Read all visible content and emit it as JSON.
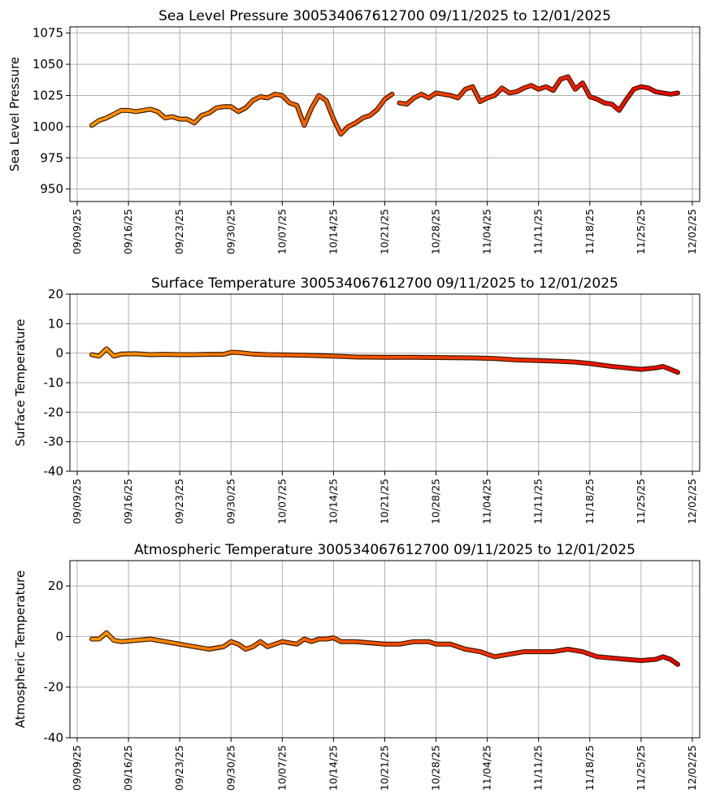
{
  "chart_data": [
    {
      "type": "line",
      "title": "Sea Level Pressure 300534067612700  09/11/2025 to 12/01/2025",
      "ylabel": "Sea Level Pressure",
      "ylim": [
        940,
        1080
      ],
      "yticks": [
        950,
        975,
        1000,
        1025,
        1050,
        1075
      ],
      "xlim": [
        "2025-09-08",
        "2025-12-03"
      ],
      "xtick_labels": [
        "09/09/25",
        "09/16/25",
        "09/23/25",
        "09/30/25",
        "10/07/25",
        "10/14/25",
        "10/21/25",
        "10/28/25",
        "11/04/25",
        "11/11/25",
        "11/18/25",
        "11/25/25",
        "12/02/25"
      ],
      "xtick_dates": [
        "2025-09-09",
        "2025-09-16",
        "2025-09-23",
        "2025-09-30",
        "2025-10-07",
        "2025-10-14",
        "2025-10-21",
        "2025-10-28",
        "2025-11-04",
        "2025-11-11",
        "2025-11-18",
        "2025-11-25",
        "2025-12-02"
      ],
      "grid": true,
      "color_gradient": [
        "#ff9900",
        "#ee0000"
      ],
      "series": [
        {
          "x": [
            "2025-09-11",
            "2025-09-12",
            "2025-09-13",
            "2025-09-14",
            "2025-09-15",
            "2025-09-16",
            "2025-09-17",
            "2025-09-18",
            "2025-09-19",
            "2025-09-20",
            "2025-09-21",
            "2025-09-22",
            "2025-09-23",
            "2025-09-24",
            "2025-09-25",
            "2025-09-26",
            "2025-09-27",
            "2025-09-28",
            "2025-09-29",
            "2025-09-30",
            "2025-10-01",
            "2025-10-02",
            "2025-10-03",
            "2025-10-04",
            "2025-10-05",
            "2025-10-06",
            "2025-10-07",
            "2025-10-08",
            "2025-10-09",
            "2025-10-10",
            "2025-10-11",
            "2025-10-12",
            "2025-10-13",
            "2025-10-14",
            "2025-10-15",
            "2025-10-16",
            "2025-10-17",
            "2025-10-18",
            "2025-10-19",
            "2025-10-20",
            "2025-10-21",
            "2025-10-22"
          ],
          "y": [
            1001,
            1005,
            1007,
            1010,
            1013,
            1013,
            1012,
            1013,
            1014,
            1012,
            1007,
            1008,
            1006,
            1006,
            1003,
            1009,
            1011,
            1015,
            1016,
            1016,
            1012,
            1015,
            1021,
            1024,
            1023,
            1026,
            1025,
            1019,
            1017,
            1001,
            1015,
            1025,
            1021,
            1006,
            994,
            1000,
            1003,
            1007,
            1009,
            1014,
            1022,
            1026
          ]
        },
        {
          "x": [
            "2025-10-23",
            "2025-10-24",
            "2025-10-25",
            "2025-10-26",
            "2025-10-27",
            "2025-10-28",
            "2025-10-29",
            "2025-10-30",
            "2025-10-31",
            "2025-11-01",
            "2025-11-02",
            "2025-11-03",
            "2025-11-04",
            "2025-11-05",
            "2025-11-06",
            "2025-11-07",
            "2025-11-08",
            "2025-11-09",
            "2025-11-10",
            "2025-11-11",
            "2025-11-12",
            "2025-11-13",
            "2025-11-14",
            "2025-11-15",
            "2025-11-16",
            "2025-11-17",
            "2025-11-18",
            "2025-11-19",
            "2025-11-20",
            "2025-11-21",
            "2025-11-22",
            "2025-11-23",
            "2025-11-24",
            "2025-11-25",
            "2025-11-26",
            "2025-11-27",
            "2025-11-28",
            "2025-11-29",
            "2025-11-30"
          ],
          "y": [
            1019,
            1018,
            1023,
            1026,
            1023,
            1027,
            1026,
            1025,
            1023,
            1030,
            1032,
            1020,
            1023,
            1025,
            1031,
            1027,
            1028,
            1031,
            1033,
            1030,
            1032,
            1029,
            1038,
            1040,
            1030,
            1035,
            1024,
            1022,
            1019,
            1018,
            1013,
            1022,
            1030,
            1032,
            1031,
            1028,
            1027,
            1026,
            1027
          ]
        }
      ]
    },
    {
      "type": "line",
      "title": "Surface Temperature 300534067612700  09/11/2025 to 12/01/2025",
      "ylabel": "Surface Temperature",
      "ylim": [
        -40,
        20
      ],
      "yticks": [
        -40,
        -30,
        -20,
        -10,
        0,
        10,
        20
      ],
      "xlim": [
        "2025-09-08",
        "2025-12-03"
      ],
      "xtick_labels": [
        "09/09/25",
        "09/16/25",
        "09/23/25",
        "09/30/25",
        "10/07/25",
        "10/14/25",
        "10/21/25",
        "10/28/25",
        "11/04/25",
        "11/11/25",
        "11/18/25",
        "11/25/25",
        "12/02/25"
      ],
      "xtick_dates": [
        "2025-09-09",
        "2025-09-16",
        "2025-09-23",
        "2025-09-30",
        "2025-10-07",
        "2025-10-14",
        "2025-10-21",
        "2025-10-28",
        "2025-11-04",
        "2025-11-11",
        "2025-11-18",
        "2025-11-25",
        "2025-12-02"
      ],
      "grid": true,
      "color_gradient": [
        "#ff9900",
        "#ee0000"
      ],
      "series": [
        {
          "x": [
            "2025-09-11",
            "2025-09-12",
            "2025-09-13",
            "2025-09-14",
            "2025-09-15",
            "2025-09-17",
            "2025-09-19",
            "2025-09-21",
            "2025-09-23",
            "2025-09-25",
            "2025-09-27",
            "2025-09-29",
            "2025-09-30",
            "2025-10-01",
            "2025-10-03",
            "2025-10-05",
            "2025-10-07",
            "2025-10-10",
            "2025-10-14",
            "2025-10-17",
            "2025-10-21",
            "2025-10-25",
            "2025-10-29",
            "2025-11-02",
            "2025-11-05",
            "2025-11-08",
            "2025-11-11",
            "2025-11-14",
            "2025-11-16",
            "2025-11-18",
            "2025-11-21",
            "2025-11-23",
            "2025-11-25",
            "2025-11-27",
            "2025-11-28",
            "2025-11-29",
            "2025-11-30"
          ],
          "y": [
            -0.5,
            -1,
            1.5,
            -1,
            -0.3,
            -0.2,
            -0.5,
            -0.4,
            -0.5,
            -0.5,
            -0.4,
            -0.4,
            0.3,
            0.2,
            -0.3,
            -0.5,
            -0.6,
            -0.7,
            -1.0,
            -1.3,
            -1.4,
            -1.4,
            -1.5,
            -1.6,
            -1.8,
            -2.3,
            -2.5,
            -2.8,
            -3.0,
            -3.5,
            -4.5,
            -5.0,
            -5.5,
            -5.0,
            -4.5,
            -5.5,
            -6.5
          ]
        }
      ]
    },
    {
      "type": "line",
      "title": "Atmospheric Temperature 300534067612700  09/11/2025 to 12/01/2025",
      "ylabel": "Atmospheric Temperature",
      "ylim": [
        -40,
        30
      ],
      "yticks": [
        -40,
        -20,
        0,
        20
      ],
      "xlim": [
        "2025-09-08",
        "2025-12-03"
      ],
      "xtick_labels": [
        "09/09/25",
        "09/16/25",
        "09/23/25",
        "09/30/25",
        "10/07/25",
        "10/14/25",
        "10/21/25",
        "10/28/25",
        "11/04/25",
        "11/11/25",
        "11/18/25",
        "11/25/25",
        "12/02/25"
      ],
      "xtick_dates": [
        "2025-09-09",
        "2025-09-16",
        "2025-09-23",
        "2025-09-30",
        "2025-10-07",
        "2025-10-14",
        "2025-10-21",
        "2025-10-28",
        "2025-11-04",
        "2025-11-11",
        "2025-11-18",
        "2025-11-25",
        "2025-12-02"
      ],
      "grid": true,
      "color_gradient": [
        "#ff9900",
        "#ee0000"
      ],
      "series": [
        {
          "x": [
            "2025-09-11",
            "2025-09-12",
            "2025-09-13",
            "2025-09-14",
            "2025-09-15",
            "2025-09-17",
            "2025-09-19",
            "2025-09-21",
            "2025-09-23",
            "2025-09-25",
            "2025-09-27",
            "2025-09-29",
            "2025-09-30",
            "2025-10-01",
            "2025-10-02",
            "2025-10-03",
            "2025-10-04",
            "2025-10-05",
            "2025-10-07",
            "2025-10-09",
            "2025-10-10",
            "2025-10-11",
            "2025-10-12",
            "2025-10-13",
            "2025-10-14",
            "2025-10-15",
            "2025-10-17",
            "2025-10-19",
            "2025-10-21",
            "2025-10-23",
            "2025-10-25",
            "2025-10-27",
            "2025-10-28",
            "2025-10-30",
            "2025-11-01",
            "2025-11-03",
            "2025-11-05",
            "2025-11-07",
            "2025-11-09",
            "2025-11-11",
            "2025-11-13",
            "2025-11-15",
            "2025-11-17",
            "2025-11-19",
            "2025-11-21",
            "2025-11-23",
            "2025-11-25",
            "2025-11-27",
            "2025-11-28",
            "2025-11-29",
            "2025-11-30"
          ],
          "y": [
            -1,
            -1,
            1.5,
            -1.5,
            -2,
            -1.5,
            -1,
            -2,
            -3,
            -4,
            -5,
            -4,
            -2,
            -3,
            -5,
            -4,
            -2,
            -4,
            -2,
            -3,
            -1,
            -2,
            -1,
            -1,
            -0.5,
            -2,
            -2,
            -2.5,
            -3,
            -3,
            -2,
            -2,
            -3,
            -3,
            -5,
            -6,
            -8,
            -7,
            -6,
            -6,
            -6,
            -5,
            -6,
            -8,
            -8.5,
            -9,
            -9.5,
            -9,
            -8,
            -9,
            -11
          ]
        }
      ]
    }
  ]
}
